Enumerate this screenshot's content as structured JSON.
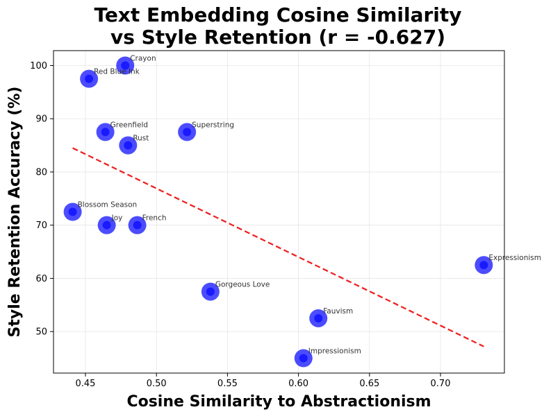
{
  "chart_data": {
    "type": "scatter",
    "title_lines": [
      "Text Embedding Cosine Similarity",
      "vs Style Retention (r = -0.627)"
    ],
    "xlabel": "Cosine Similarity to Abstractionism",
    "ylabel": "Style Retention Accuracy (%)",
    "xlim": [
      0.4275,
      0.745
    ],
    "ylim": [
      42.2,
      102.8
    ],
    "xticks": [
      0.45,
      0.5,
      0.55,
      0.6,
      0.65,
      0.7
    ],
    "xtick_labels": [
      "0.45",
      "0.50",
      "0.55",
      "0.60",
      "0.65",
      "0.70"
    ],
    "yticks": [
      50,
      60,
      70,
      80,
      90,
      100
    ],
    "ytick_labels": [
      "50",
      "60",
      "70",
      "80",
      "90",
      "100"
    ],
    "grid": true,
    "point_color": "#1a1aff",
    "trend_color": "#ee2222",
    "points": [
      {
        "label": "Crayon",
        "x": 0.478,
        "y": 100.0
      },
      {
        "label": "Red Blue Ink",
        "x": 0.4525,
        "y": 97.5
      },
      {
        "label": "Greenfield",
        "x": 0.464,
        "y": 87.5
      },
      {
        "label": "Superstring",
        "x": 0.5215,
        "y": 87.5
      },
      {
        "label": "Rust",
        "x": 0.48,
        "y": 85.0
      },
      {
        "label": "Blossom Season",
        "x": 0.441,
        "y": 72.5
      },
      {
        "label": "Joy",
        "x": 0.465,
        "y": 70.0
      },
      {
        "label": "French",
        "x": 0.4865,
        "y": 70.0
      },
      {
        "label": "Expressionism",
        "x": 0.7305,
        "y": 62.5
      },
      {
        "label": "Gorgeous Love",
        "x": 0.538,
        "y": 57.5
      },
      {
        "label": "Fauvism",
        "x": 0.614,
        "y": 52.5
      },
      {
        "label": "Impressionism",
        "x": 0.6035,
        "y": 45.0
      }
    ],
    "trendline": {
      "x": [
        0.441,
        0.7305
      ],
      "y": [
        84.5,
        47.2
      ]
    }
  }
}
